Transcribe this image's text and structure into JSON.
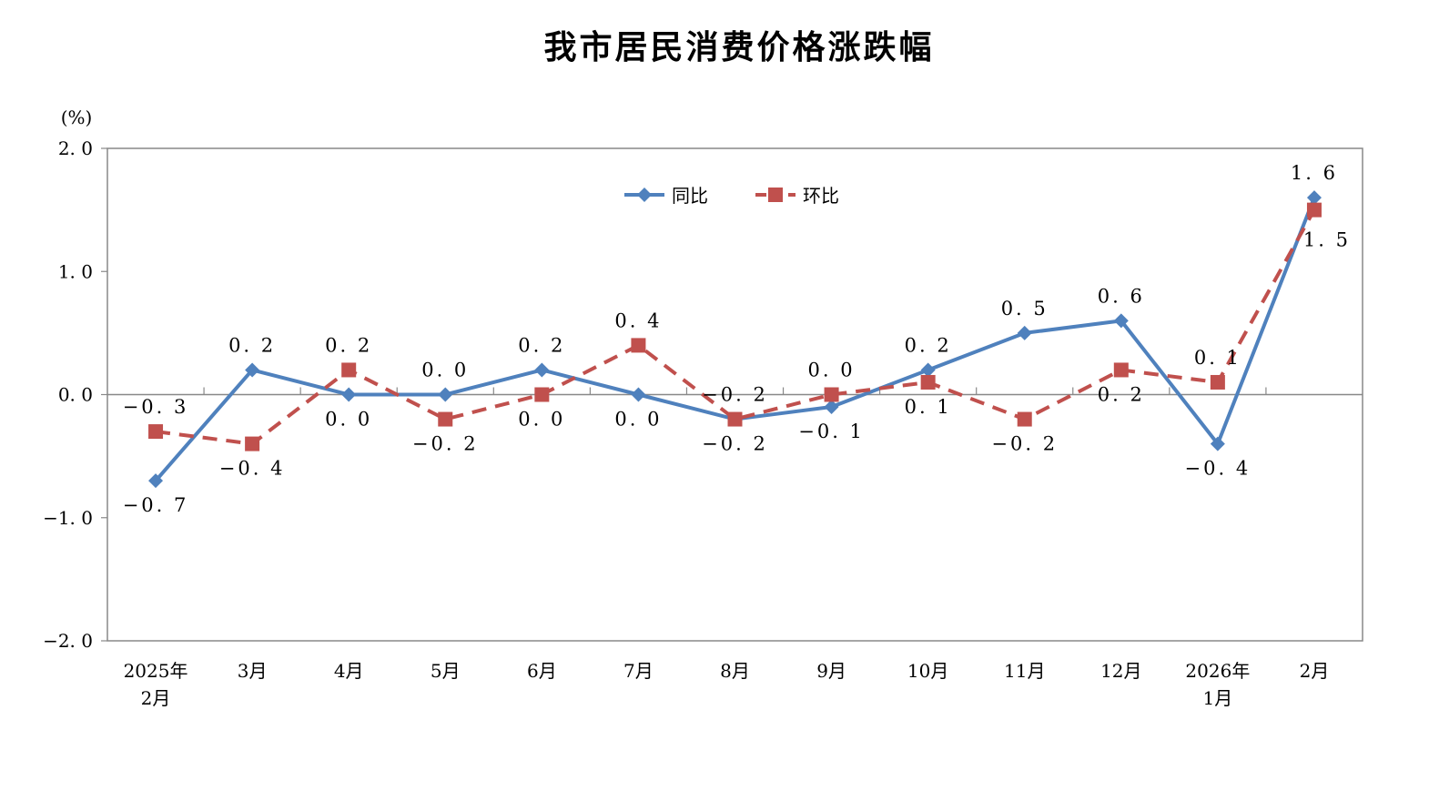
{
  "chart_data": {
    "type": "line",
    "title": "我市居民消费价格涨跌幅",
    "ylabel": "(%)",
    "ylim": [
      -2.0,
      2.0
    ],
    "yticks": [
      "2.0",
      "1.0",
      "0.0",
      "-1.0",
      "-2.0"
    ],
    "categories": [
      [
        "2025年",
        "2月"
      ],
      [
        "3月"
      ],
      [
        "4月"
      ],
      [
        "5月"
      ],
      [
        "6月"
      ],
      [
        "7月"
      ],
      [
        "8月"
      ],
      [
        "9月"
      ],
      [
        "10月"
      ],
      [
        "11月"
      ],
      [
        "12月"
      ],
      [
        "2026年",
        "1月"
      ],
      [
        "2月"
      ]
    ],
    "grid": false,
    "legend": "top-center",
    "series": [
      {
        "name": "同比",
        "color": "#4F81BD",
        "marker": "diamond",
        "dash": false,
        "values": [
          -0.7,
          0.2,
          0.0,
          0.0,
          0.2,
          0.0,
          -0.2,
          -0.1,
          0.2,
          0.5,
          0.6,
          -0.4,
          1.6
        ]
      },
      {
        "name": "环比",
        "color": "#C0504D",
        "marker": "square",
        "dash": true,
        "values": [
          -0.3,
          -0.4,
          0.2,
          -0.2,
          0.0,
          0.4,
          -0.2,
          0.0,
          0.1,
          -0.2,
          0.2,
          0.1,
          1.5
        ]
      }
    ]
  }
}
